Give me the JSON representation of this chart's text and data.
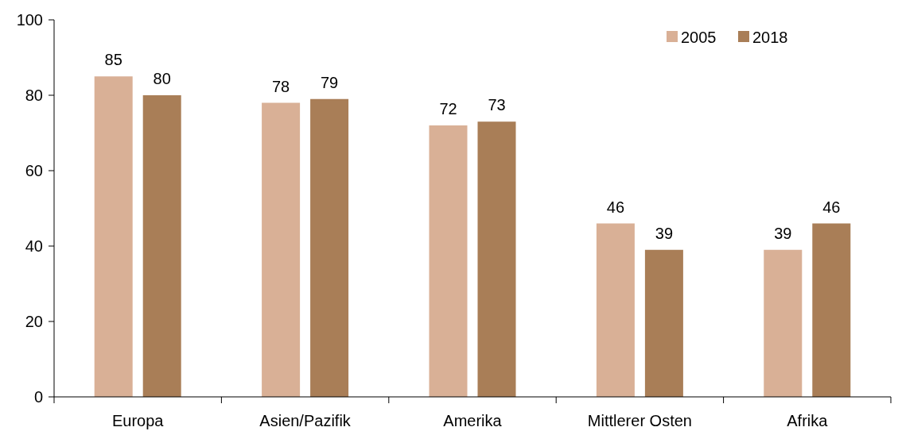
{
  "chart_data": {
    "type": "bar",
    "categories": [
      "Europa",
      "Asien/Pazifik",
      "Amerika",
      "Mittlerer Osten",
      "Afrika"
    ],
    "series": [
      {
        "name": "2005",
        "color": "#d9b096",
        "values": [
          85,
          78,
          72,
          46,
          39
        ]
      },
      {
        "name": "2018",
        "color": "#a97e57",
        "values": [
          80,
          79,
          73,
          39,
          46
        ]
      }
    ],
    "ylim": [
      0,
      100
    ],
    "yticks": [
      0,
      20,
      40,
      60,
      80,
      100
    ],
    "data_labels": true,
    "legend": "top right",
    "grid": false
  }
}
